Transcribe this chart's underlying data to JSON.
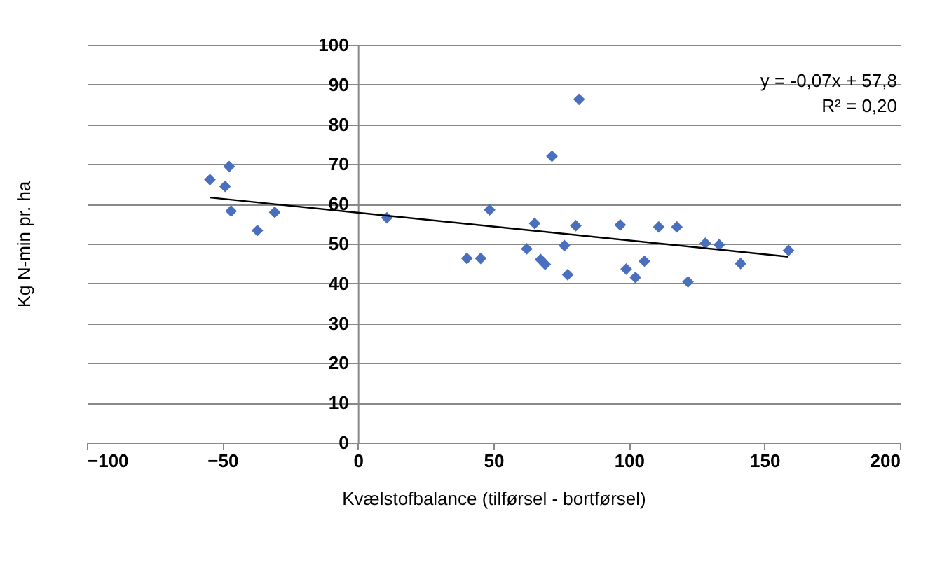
{
  "chart_data": {
    "type": "scatter",
    "xlabel": "Kvælstofbalance (tilførsel - bortførsel)",
    "ylabel": "Kg N-min pr. ha",
    "annotations": [
      "y = -0,07x + 57,8",
      "R² = 0,20"
    ],
    "series": [
      {
        "color": "#4a6fbf",
        "marker": "diamond",
        "x": [
          -54.6,
          -49,
          -47.5,
          -46.8,
          -37.1,
          -30.7,
          10.7,
          40.2,
          45.3,
          48.6,
          62.3,
          65.2,
          67.4,
          69.1,
          71.6,
          76.2,
          77.4,
          80.4,
          81.6,
          96.8,
          99,
          102.4,
          105.7,
          111,
          117.7,
          121.8,
          128.2,
          133.3,
          141.2,
          158.9
        ],
        "values": [
          66.1,
          64.4,
          69.4,
          58.2,
          53.3,
          57.9,
          56.5,
          46.3,
          46.3,
          58.5,
          48.7,
          55.1,
          46,
          44.8,
          72,
          49.5,
          42.2,
          54.5,
          86.3,
          54.7,
          43.6,
          41.5,
          45.6,
          54.2,
          54.2,
          40.4,
          50.1,
          49.7,
          45,
          48.3
        ]
      },
      {
        "type": "line",
        "color": "#000000",
        "x": [
          -54.6,
          158.9
        ],
        "values": [
          61.6,
          46.7
        ]
      }
    ],
    "xlim": [
      -100,
      200
    ],
    "xticks": [
      -100,
      -50,
      0,
      50,
      100,
      150,
      200
    ],
    "ylim": [
      0,
      100
    ],
    "yticks": [
      0,
      10,
      20,
      30,
      40,
      50,
      60,
      70,
      80,
      90,
      100
    ],
    "grid": "y"
  }
}
